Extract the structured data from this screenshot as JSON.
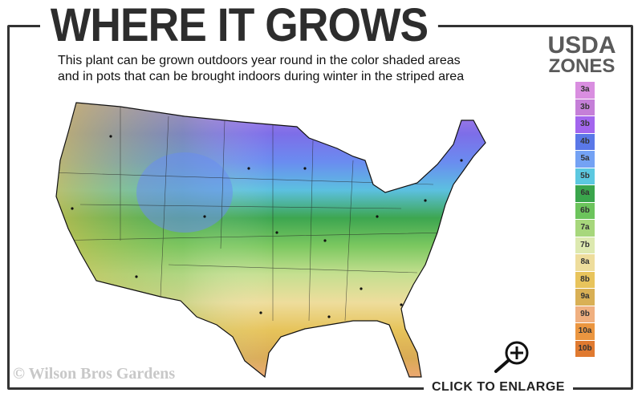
{
  "title": "WHERE IT GROWS",
  "subtitle_lines": [
    "This plant can be grown outdoors year round in the color shaded areas",
    "and in pots that can be brought indoors during winter in the striped area"
  ],
  "legend": {
    "heading_line1": "USDA",
    "heading_line2": "ZONES",
    "zones": [
      {
        "label": "3a",
        "color": "#d98ee0"
      },
      {
        "label": "3b",
        "color": "#c57fd8"
      },
      {
        "label": "3b",
        "color": "#a366ee"
      },
      {
        "label": "4b",
        "color": "#5a78e8"
      },
      {
        "label": "5a",
        "color": "#74a2f4"
      },
      {
        "label": "5b",
        "color": "#5cc8e0"
      },
      {
        "label": "6a",
        "color": "#3aa54c"
      },
      {
        "label": "6b",
        "color": "#6cc45c"
      },
      {
        "label": "7a",
        "color": "#a7d77c"
      },
      {
        "label": "7b",
        "color": "#dde9b0"
      },
      {
        "label": "8a",
        "color": "#eedd9c"
      },
      {
        "label": "8b",
        "color": "#e8c45c"
      },
      {
        "label": "9a",
        "color": "#d9b055"
      },
      {
        "label": "9b",
        "color": "#f0b080"
      },
      {
        "label": "10a",
        "color": "#eb9640"
      },
      {
        "label": "10b",
        "color": "#e07a30"
      }
    ]
  },
  "copyright": "© Wilson Bros Gardens",
  "enlarge_label": "CLICK TO ENLARGE",
  "icons": {
    "zoom": "magnifier-plus-icon"
  }
}
